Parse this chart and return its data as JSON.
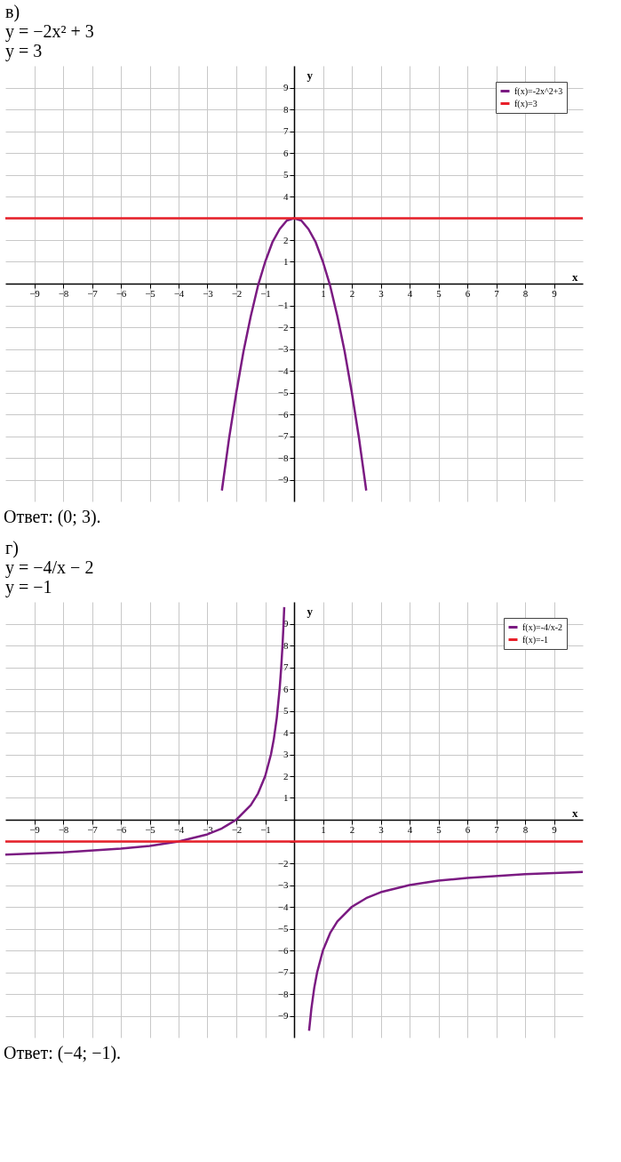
{
  "chart_data": [
    {
      "type": "line",
      "title": "в)",
      "subtitle": "y = −2x² + 3\ny = 3",
      "xlabel": "x",
      "ylabel": "y",
      "xlim": [
        -10,
        10
      ],
      "ylim": [
        -10,
        10
      ],
      "xticks": [
        -9,
        -8,
        -7,
        -6,
        -5,
        -4,
        -3,
        -2,
        -1,
        1,
        2,
        3,
        4,
        5,
        6,
        7,
        8,
        9
      ],
      "yticks": [
        -9,
        -8,
        -7,
        -6,
        -5,
        -4,
        -3,
        -2,
        -1,
        1,
        2,
        {
          "value": 3,
          "label": null
        },
        4,
        5,
        6,
        7,
        8,
        9
      ],
      "grid": true,
      "legend": "top right",
      "annotations": [
        "Ответ: (0; 3)."
      ],
      "series": [
        {
          "name": "f(x)=-2x^2+3",
          "color": "#7b1b82",
          "x": [
            -2.5,
            -2.25,
            -2,
            -1.75,
            -1.5,
            -1.25,
            -1,
            -0.75,
            -0.5,
            -0.25,
            0,
            0.25,
            0.5,
            0.75,
            1,
            1.25,
            1.5,
            1.75,
            2,
            2.25,
            2.5
          ],
          "values": [
            -9.5,
            -7.1,
            -5,
            -3.1,
            -1.5,
            -0.1,
            1,
            1.9,
            2.5,
            2.9,
            3,
            2.9,
            2.5,
            1.9,
            1,
            -0.1,
            -1.5,
            -3.1,
            -5,
            -7.1,
            -9.5
          ]
        },
        {
          "name": "f(x)=3",
          "color": "#e8202a",
          "x": [
            -10,
            10
          ],
          "values": [
            3,
            3
          ]
        }
      ]
    },
    {
      "type": "line",
      "title": "г)",
      "subtitle": "y = −4/x − 2\ny = −1",
      "xlabel": "x",
      "ylabel": "y",
      "xlim": [
        -10,
        10
      ],
      "ylim": [
        -10,
        10
      ],
      "xticks": [
        -9,
        -8,
        -7,
        -6,
        -5,
        -4,
        -3,
        -2,
        -1,
        1,
        2,
        3,
        4,
        5,
        6,
        7,
        8,
        9
      ],
      "yticks": [
        -9,
        -8,
        -7,
        -6,
        -5,
        -4,
        -3,
        -2,
        {
          "value": -1,
          "label": null
        },
        1,
        2,
        3,
        4,
        5,
        6,
        7,
        8,
        9
      ],
      "grid": true,
      "legend": "top right",
      "annotations": [
        "Ответ: (−4; −1)."
      ],
      "series": [
        {
          "name": "f(x)=-4/x-2",
          "color": "#7b1b82",
          "x": [
            -10,
            -8,
            -6,
            -5,
            -4,
            -3,
            -2.5,
            -2,
            -1.5,
            -1.25,
            -1,
            -0.8,
            -0.7,
            -0.6,
            -0.5,
            -0.45,
            -0.4,
            -0.37,
            -0.34,
            0,
            0.52,
            0.6,
            0.7,
            0.8,
            1,
            1.25,
            1.5,
            2,
            2.5,
            3,
            4,
            5,
            6,
            8,
            10
          ],
          "values": [
            -1.6,
            -1.5,
            -1.33,
            -1.2,
            -1,
            -0.67,
            -0.4,
            0,
            0.67,
            1.2,
            2,
            3,
            3.71,
            4.67,
            6,
            6.89,
            8,
            8.81,
            9.76,
            null,
            -9.69,
            -8.67,
            -7.71,
            -7,
            -6,
            -5.2,
            -4.67,
            -4,
            -3.6,
            -3.33,
            -3,
            -2.8,
            -2.67,
            -2.5,
            -2.4
          ]
        },
        {
          "name": "f(x)=-1",
          "color": "#e8202a",
          "x": [
            -10,
            10
          ],
          "values": [
            -1,
            -1
          ]
        }
      ]
    }
  ]
}
